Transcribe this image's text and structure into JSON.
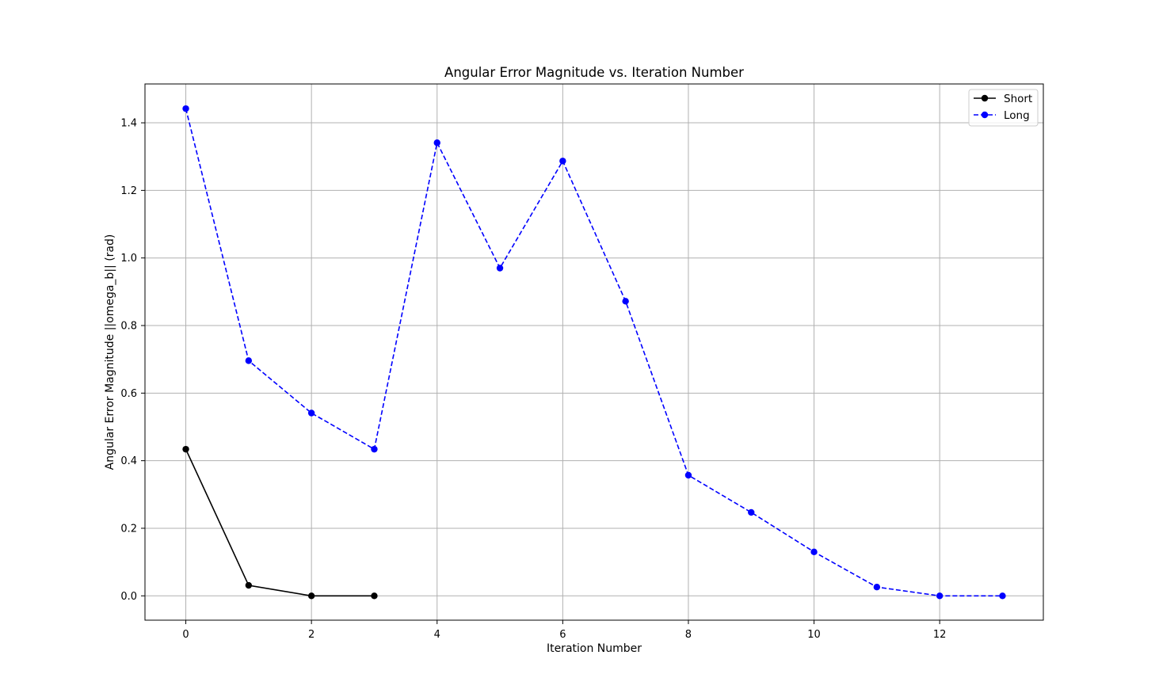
{
  "chart_data": {
    "type": "line",
    "title": "Angular Error Magnitude vs. Iteration Number",
    "xlabel": "Iteration Number",
    "ylabel": "Angular Error Magnitude ||omega_b|| (rad)",
    "xlim": [
      -0.65,
      13.65
    ],
    "ylim": [
      -0.072,
      1.515
    ],
    "xticks": [
      0,
      2,
      4,
      6,
      8,
      10,
      12
    ],
    "yticks": [
      0.0,
      0.2,
      0.4,
      0.6,
      0.8,
      1.0,
      1.2,
      1.4
    ],
    "xtick_labels": [
      "0",
      "2",
      "4",
      "6",
      "8",
      "10",
      "12"
    ],
    "ytick_labels": [
      "0.0",
      "0.2",
      "0.4",
      "0.6",
      "0.8",
      "1.0",
      "1.2",
      "1.4"
    ],
    "grid": true,
    "legend_position": "top-right",
    "series": [
      {
        "name": "Short",
        "color": "#000000",
        "line_style": "solid",
        "marker": "circle",
        "x": [
          0,
          1,
          2,
          3
        ],
        "y": [
          0.434,
          0.031,
          0.0,
          0.0
        ]
      },
      {
        "name": "Long",
        "color": "#0000ff",
        "line_style": "dashed",
        "marker": "circle",
        "x": [
          0,
          1,
          2,
          3,
          4,
          5,
          6,
          7,
          8,
          9,
          10,
          11,
          12,
          13
        ],
        "y": [
          1.442,
          0.696,
          0.541,
          0.434,
          1.341,
          0.97,
          1.287,
          0.872,
          0.357,
          0.247,
          0.13,
          0.026,
          0.0,
          0.0
        ]
      }
    ]
  }
}
